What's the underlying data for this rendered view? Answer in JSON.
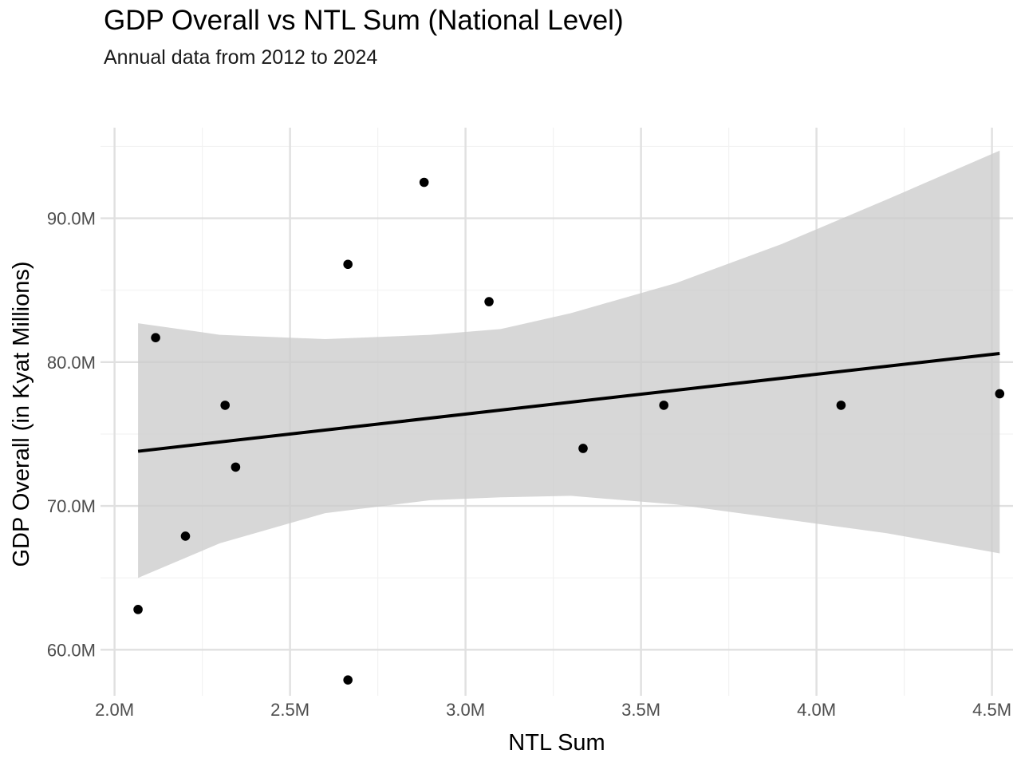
{
  "chart_data": {
    "type": "scatter",
    "title": "GDP Overall vs NTL Sum (National Level)",
    "subtitle": "Annual data from 2012 to 2024",
    "xlabel": "NTL Sum",
    "ylabel": "GDP Overall (in Kyat Millions)",
    "xlim": [
      1.96,
      4.56
    ],
    "ylim": [
      56.8,
      96.3
    ],
    "x_unit": "M",
    "y_unit": "M",
    "x_ticks": [
      2.0,
      2.5,
      3.0,
      3.5,
      4.0,
      4.5
    ],
    "x_tick_labels": [
      "2.0M",
      "2.5M",
      "3.0M",
      "3.5M",
      "4.0M",
      "4.5M"
    ],
    "y_ticks": [
      60.0,
      70.0,
      80.0,
      90.0
    ],
    "y_tick_labels": [
      "60.0M",
      "70.0M",
      "80.0M",
      "90.0M"
    ],
    "grid": true,
    "legend": "none",
    "points": [
      {
        "x": 2.067,
        "y": 62.8
      },
      {
        "x": 2.117,
        "y": 81.7
      },
      {
        "x": 2.202,
        "y": 67.9
      },
      {
        "x": 2.315,
        "y": 77.0
      },
      {
        "x": 2.345,
        "y": 72.7
      },
      {
        "x": 2.665,
        "y": 86.8
      },
      {
        "x": 2.665,
        "y": 57.9
      },
      {
        "x": 2.882,
        "y": 92.5
      },
      {
        "x": 3.067,
        "y": 84.2
      },
      {
        "x": 3.335,
        "y": 74.0
      },
      {
        "x": 3.565,
        "y": 77.0
      },
      {
        "x": 4.07,
        "y": 77.0
      },
      {
        "x": 4.522,
        "y": 77.8
      }
    ],
    "trend_line": {
      "x": [
        2.067,
        4.522
      ],
      "y": [
        73.8,
        80.6
      ]
    },
    "confidence_band": {
      "x": [
        2.067,
        2.3,
        2.6,
        2.9,
        3.1,
        3.3,
        3.6,
        3.9,
        4.2,
        4.522
      ],
      "lower": [
        65.0,
        67.4,
        69.5,
        70.4,
        70.6,
        70.7,
        70.1,
        69.1,
        68.1,
        66.7
      ],
      "upper": [
        82.7,
        81.9,
        81.6,
        81.9,
        82.3,
        83.4,
        85.5,
        88.2,
        91.3,
        94.7
      ]
    },
    "colors": {
      "point": "#000000",
      "line": "#000000",
      "band": "#cccccc",
      "grid_major": "#e0e0e0",
      "grid_minor": "#f2f2f2"
    }
  }
}
